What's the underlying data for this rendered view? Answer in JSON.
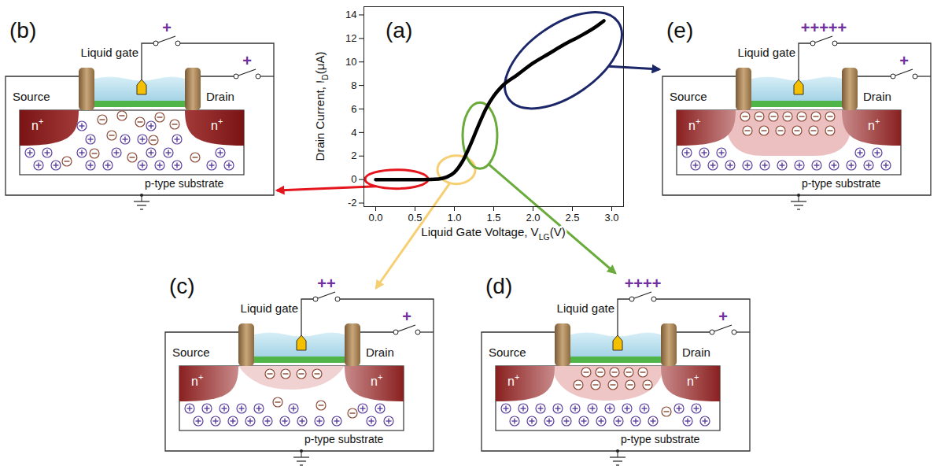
{
  "chart_data": {
    "type": "line",
    "title": "(a)",
    "x_label": {
      "text": "Liquid Gate Voltage, V",
      "sub": "LG",
      "suffix": "(V)"
    },
    "y_label": {
      "text": "Drain Current, I",
      "sub": "D",
      "suffix": "(μA)"
    },
    "x": [
      0,
      0.2,
      0.4,
      0.6,
      0.8,
      0.9,
      1.0,
      1.1,
      1.2,
      1.3,
      1.4,
      1.5,
      1.6,
      1.8,
      2.0,
      2.2,
      2.4,
      2.6,
      2.8,
      2.9
    ],
    "values": [
      0,
      0,
      0,
      0,
      0.05,
      0.2,
      0.6,
      1.5,
      2.9,
      4.5,
      6.0,
      7.1,
      7.9,
      8.9,
      9.9,
      10.7,
      11.5,
      12.2,
      13.0,
      13.5
    ],
    "color": "#000000",
    "xlim": [
      -0.15,
      3.15
    ],
    "xticks": [
      {
        "value": 0,
        "label": "0.0"
      },
      {
        "value": 0.5,
        "label": "0.5"
      },
      {
        "value": 1,
        "label": "1.0"
      },
      {
        "value": 1.5,
        "label": "1.5"
      },
      {
        "value": 2,
        "label": "2.0"
      },
      {
        "value": 2.5,
        "label": "2.5"
      },
      {
        "value": 3,
        "label": "3.0"
      }
    ],
    "ylim": [
      -2.3,
      14.7
    ],
    "yticks": [
      -2,
      0,
      2,
      4,
      6,
      8,
      10,
      12,
      14
    ],
    "highlights": [
      {
        "x": 0.27,
        "y": 0,
        "color": "#e4151c",
        "panel": "(b)"
      },
      {
        "x": 1.03,
        "y": 0.8,
        "color": "#f5cf72",
        "panel": "(c)"
      },
      {
        "x": 1.33,
        "y": 3.7,
        "color": "#6aab3c",
        "panel": "(d)"
      },
      {
        "x": 2.39,
        "y": 10.1,
        "color": "#1c2769",
        "panel": "(e)"
      }
    ]
  },
  "diagrams": [
    {
      "letter": "(b)",
      "gate_label": "Liquid gate",
      "gate_bias": "+",
      "drain_bias": "+",
      "source_label": "Source",
      "drain_label": "Drain",
      "n_region": {
        "text": "n",
        "sup": "+"
      },
      "substrate_label": "p-type substrate"
    },
    {
      "letter": "(c)",
      "gate_label": "Liquid gate",
      "gate_bias": "++",
      "drain_bias": "+",
      "source_label": "Source",
      "drain_label": "Drain",
      "n_region": {
        "text": "n",
        "sup": "+"
      },
      "substrate_label": "p-type substrate"
    },
    {
      "letter": "(d)",
      "gate_label": "Liquid gate",
      "gate_bias": "++++",
      "drain_bias": "+",
      "source_label": "Source",
      "drain_label": "Drain",
      "n_region": {
        "text": "n",
        "sup": "+"
      },
      "substrate_label": "p-type substrate"
    },
    {
      "letter": "(e)",
      "gate_label": "Liquid gate",
      "gate_bias": "+++++",
      "drain_bias": "+",
      "source_label": "Source",
      "drain_label": "Drain",
      "n_region": {
        "text": "n",
        "sup": "+"
      },
      "substrate_label": "p-type substrate"
    }
  ]
}
